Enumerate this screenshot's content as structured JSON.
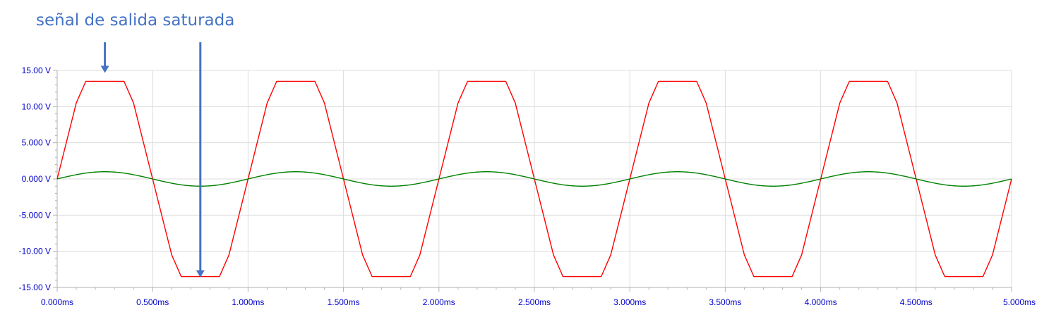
{
  "annotation": {
    "text": "señal de salida saturada",
    "color": "#4472c4",
    "arrows": [
      {
        "points_to": "positive-saturation-plateau",
        "at_x": 0.25,
        "at_y": 13.5
      },
      {
        "points_to": "negative-saturation-plateau",
        "at_x": 0.75,
        "at_y": -13.5
      }
    ]
  },
  "chart_data": {
    "type": "line",
    "title": "",
    "xlabel": "",
    "ylabel": "",
    "xlim": [
      0,
      5
    ],
    "ylim": [
      -15,
      15
    ],
    "grid": true,
    "x_unit": "ms",
    "y_unit": "V",
    "x_ticks": [
      0,
      0.5,
      1.0,
      1.5,
      2.0,
      2.5,
      3.0,
      3.5,
      4.0,
      4.5,
      5.0
    ],
    "x_tick_labels": [
      "0.000ms",
      "0.500ms",
      "1.000ms",
      "1.500ms",
      "2.000ms",
      "2.500ms",
      "3.000ms",
      "3.500ms",
      "4.000ms",
      "4.500ms",
      "5.000ms"
    ],
    "y_ticks": [
      15,
      10,
      5,
      0,
      -5,
      -10,
      -15
    ],
    "y_tick_labels": [
      "15.00 V",
      "10.00 V",
      "5.000 V",
      "0.000 V",
      "-5.000 V",
      "-10.00 V",
      "-15.00 V"
    ],
    "series": [
      {
        "color": "#ff0000",
        "description": "saturated output",
        "x": [
          0,
          0.1,
          0.15,
          0.35,
          0.4,
          0.5,
          0.6,
          0.65,
          0.85,
          0.9,
          1.0,
          1.1,
          1.15,
          1.35,
          1.4,
          1.5,
          1.6,
          1.65,
          1.85,
          1.9,
          2.0,
          2.1,
          2.15,
          2.35,
          2.4,
          2.5,
          2.6,
          2.65,
          2.85,
          2.9,
          3.0,
          3.1,
          3.15,
          3.35,
          3.4,
          3.5,
          3.6,
          3.65,
          3.85,
          3.9,
          4.0,
          4.1,
          4.15,
          4.35,
          4.4,
          4.5,
          4.6,
          4.65,
          4.85,
          4.9,
          5.0
        ],
        "y": [
          0,
          10.5,
          13.5,
          13.5,
          10.5,
          0,
          -10.5,
          -13.5,
          -13.5,
          -10.5,
          0,
          10.5,
          13.5,
          13.5,
          10.5,
          0,
          -10.5,
          -13.5,
          -13.5,
          -10.5,
          0,
          10.5,
          13.5,
          13.5,
          10.5,
          0,
          -10.5,
          -13.5,
          -13.5,
          -10.5,
          0,
          10.5,
          13.5,
          13.5,
          10.5,
          0,
          -10.5,
          -13.5,
          -13.5,
          -10.5,
          0,
          10.5,
          13.5,
          13.5,
          10.5,
          0,
          -10.5,
          -13.5,
          -13.5,
          -10.5,
          0
        ]
      },
      {
        "color": "#008000",
        "description": "input sine",
        "amplitude": 1.0,
        "period": 1.0,
        "x": [
          0,
          0.125,
          0.25,
          0.375,
          0.5,
          0.625,
          0.75,
          0.875,
          1.0,
          1.125,
          1.25,
          1.375,
          1.5,
          1.625,
          1.75,
          1.875,
          2.0,
          2.125,
          2.25,
          2.375,
          2.5,
          2.625,
          2.75,
          2.875,
          3.0,
          3.125,
          3.25,
          3.375,
          3.5,
          3.625,
          3.75,
          3.875,
          4.0,
          4.125,
          4.25,
          4.375,
          4.5,
          4.625,
          4.75,
          4.875,
          5.0
        ],
        "y": [
          0,
          0.71,
          1,
          0.71,
          0,
          -0.71,
          -1,
          -0.71,
          0,
          0.71,
          1,
          0.71,
          0,
          -0.71,
          -1,
          -0.71,
          0,
          0.71,
          1,
          0.71,
          0,
          -0.71,
          -1,
          -0.71,
          0,
          0.71,
          1,
          0.71,
          0,
          -0.71,
          -1,
          -0.71,
          0,
          0.71,
          1,
          0.71,
          0,
          -0.71,
          -1,
          -0.71,
          0
        ]
      }
    ]
  }
}
